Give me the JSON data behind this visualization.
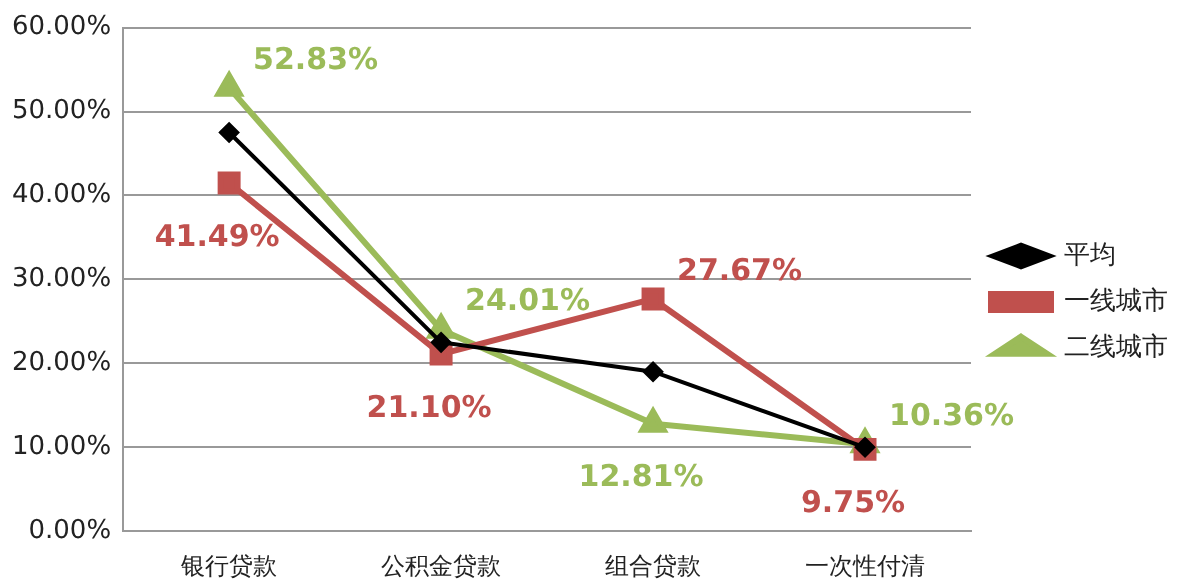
{
  "chart_data": {
    "type": "line",
    "categories": [
      "银行贷款",
      "公积金贷款",
      "组合贷款",
      "一次性付清"
    ],
    "series": [
      {
        "name": "平均",
        "color": "#000000",
        "marker": "diamond",
        "values": [
          47.5,
          22.5,
          19,
          10
        ]
      },
      {
        "name": "一线城市",
        "color": "#c0504d",
        "marker": "square",
        "values": [
          41.49,
          21.1,
          27.67,
          9.75
        ],
        "value_labels": [
          "41.49%",
          "21.10%",
          "27.67%",
          "9.75%"
        ]
      },
      {
        "name": "二线城市",
        "color": "#9bbb59",
        "marker": "triangle",
        "values": [
          52.83,
          24.01,
          12.81,
          10.36
        ],
        "value_labels": [
          "52.83%",
          "24.01%",
          "12.81%",
          "10.36%"
        ]
      }
    ],
    "ylim": [
      0,
      60
    ],
    "yticks": [
      {
        "value": 0,
        "label": "0.00%"
      },
      {
        "value": 10,
        "label": "10.00%"
      },
      {
        "value": 20,
        "label": "20.00%"
      },
      {
        "value": 30,
        "label": "30.00%"
      },
      {
        "value": 40,
        "label": "40.00%"
      },
      {
        "value": 50,
        "label": "50.00%"
      },
      {
        "value": 60,
        "label": "60.00%"
      }
    ],
    "grid": "y",
    "legend": "right"
  }
}
